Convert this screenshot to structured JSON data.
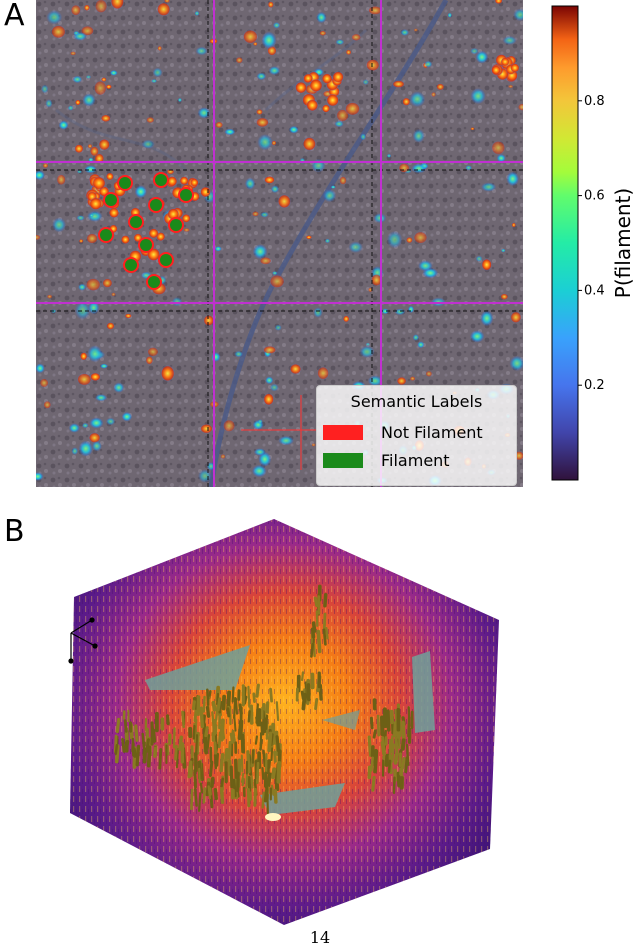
{
  "panels": {
    "a_label": "A",
    "b_label": "B"
  },
  "colorbar": {
    "label": "P(filament)",
    "ticks": [
      "0.2",
      "0.4",
      "0.6",
      "0.8"
    ],
    "tick_values": [
      0.2,
      0.4,
      0.6,
      0.8
    ],
    "range": [
      0.0,
      1.0
    ],
    "colormap": "turbo"
  },
  "legend": {
    "title": "Semantic Labels",
    "items": [
      {
        "label": "Not Filament",
        "color": "#ff2020"
      },
      {
        "label": "Filament",
        "color": "#1a8a1a"
      }
    ]
  },
  "colors": {
    "crosshair_magenta": "#c030d0",
    "grid_dashed": "#111111",
    "background_gray": "#6e6470",
    "volume_magma_dark": "#5b1d86",
    "volume_magma_bright": "#ff9a1c",
    "filament_mesh": "#8a7a22",
    "membrane_mesh": "#6fa09a"
  },
  "page_number": "14"
}
